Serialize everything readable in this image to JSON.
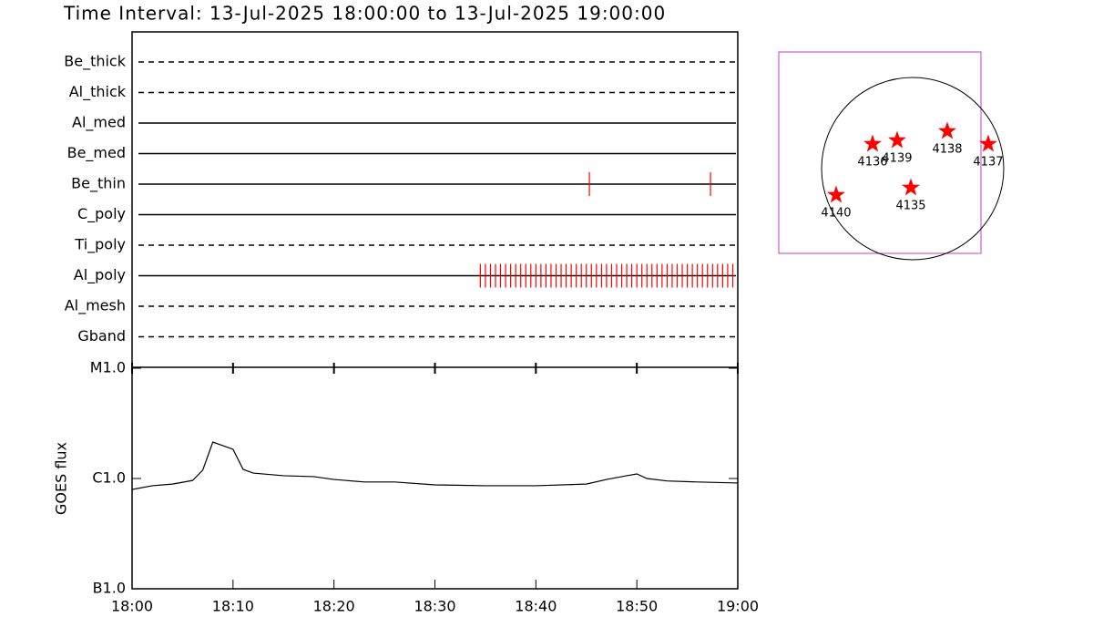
{
  "chart_data": [
    {
      "type": "timeline",
      "title": "Time Interval: 13-Jul-2025 18:00:00 to 13-Jul-2025 19:00:00",
      "categories": [
        "Be_thick",
        "Al_thick",
        "Al_med",
        "Be_med",
        "Be_thin",
        "C_poly",
        "Ti_poly",
        "Al_poly",
        "Al_mesh",
        "Gband"
      ],
      "styles": [
        "dashed",
        "dashed",
        "solid",
        "solid",
        "solid",
        "solid",
        "dashed",
        "solid",
        "dashed",
        "dashed"
      ],
      "times": [
        [],
        [],
        [],
        [],
        [
          "18:45:18",
          "18:57:18"
        ],
        [],
        [],
        [
          "18:34:30",
          "18:35:00",
          "18:35:30",
          "18:36:00",
          "18:36:30",
          "18:37:00",
          "18:37:30",
          "18:38:00",
          "18:38:30",
          "18:39:00",
          "18:39:30",
          "18:40:00",
          "18:40:30",
          "18:41:00",
          "18:41:30",
          "18:42:00",
          "18:42:30",
          "18:43:00",
          "18:43:30",
          "18:44:00",
          "18:44:30",
          "18:45:00",
          "18:45:30",
          "18:46:00",
          "18:46:30",
          "18:47:00",
          "18:47:30",
          "18:48:00",
          "18:48:30",
          "18:49:00",
          "18:49:30",
          "18:50:00",
          "18:50:30",
          "18:51:00",
          "18:51:30",
          "18:52:00",
          "18:52:30",
          "18:53:00",
          "18:53:30",
          "18:54:00",
          "18:54:30",
          "18:55:00",
          "18:55:30",
          "18:56:00",
          "18:56:30",
          "18:57:00",
          "18:57:30",
          "18:58:00",
          "18:58:30",
          "18:59:00",
          "18:59:30"
        ],
        [],
        []
      ],
      "color": "#ff0000",
      "xlim": [
        "18:00",
        "19:00"
      ]
    },
    {
      "type": "line",
      "y_label": "GOES flux",
      "x": [
        "18:00",
        "18:02",
        "18:04",
        "18:06",
        "18:07",
        "18:08",
        "18:10",
        "18:11",
        "18:12",
        "18:15",
        "18:18",
        "18:20",
        "18:23",
        "18:26",
        "18:30",
        "18:35",
        "18:40",
        "18:45",
        "18:47",
        "18:49",
        "18:50",
        "18:51",
        "18:53",
        "18:56",
        "19:00"
      ],
      "values": [
        7.96e-07,
        8.6e-07,
        8.9e-07,
        9.6e-07,
        1.19e-06,
        2.14e-06,
        1.84e-06,
        1.21e-06,
        1.12e-06,
        1.06e-06,
        1.04e-06,
        9.8e-07,
        9.3e-07,
        9.3e-07,
        8.75e-07,
        8.6e-07,
        8.6e-07,
        8.9e-07,
        9.8e-07,
        1.06e-06,
        1.1e-06,
        1e-06,
        9.5e-07,
        9.3e-07,
        9.1e-07
      ],
      "color": "#000000",
      "log_scale": true,
      "ylim": [
        1e-07,
        1e-05
      ],
      "yticks": [
        {
          "value": 1e-07,
          "label": "B1.0"
        },
        {
          "value": 1e-06,
          "label": "C1.0"
        },
        {
          "value": 1e-05,
          "label": "M1.0"
        }
      ],
      "xlim": [
        "18:00",
        "19:00"
      ],
      "xticks": [
        "18:00",
        "18:10",
        "18:20",
        "18:30",
        "18:40",
        "18:50",
        "19:00"
      ]
    },
    {
      "type": "map",
      "color": "#ff0000",
      "regions": [
        {
          "label": "4136",
          "x": -416,
          "y": 255
        },
        {
          "label": "4139",
          "x": -161,
          "y": 293
        },
        {
          "label": "4138",
          "x": 359,
          "y": 387
        },
        {
          "label": "4137",
          "x": 784,
          "y": 255
        },
        {
          "label": "4140",
          "x": -794,
          "y": -274
        },
        {
          "label": "4135",
          "x": -19,
          "y": -198
        }
      ]
    }
  ]
}
